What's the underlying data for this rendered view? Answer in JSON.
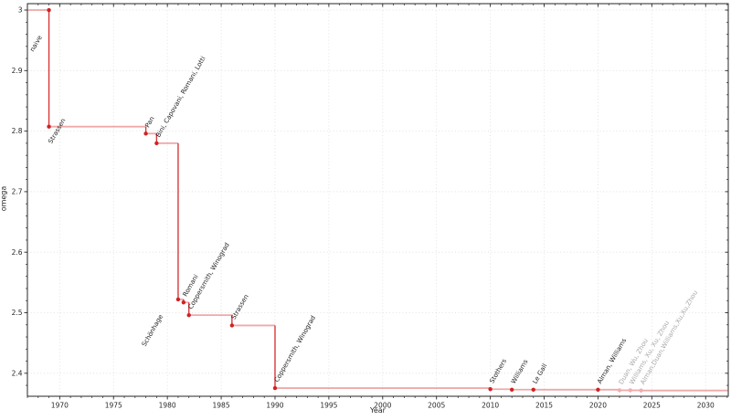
{
  "chart_data": {
    "type": "line",
    "subtype": "step-post",
    "title": "",
    "xlabel": "Year",
    "ylabel": "omega",
    "xlim": [
      1967.0,
      2032.1
    ],
    "ylim": [
      2.362,
      3.0106
    ],
    "grid": "dotted-at-major-ticks",
    "legend": "none",
    "x_ticks": [
      {
        "value": 1970,
        "label": "1970"
      },
      {
        "value": 1975,
        "label": "1975"
      },
      {
        "value": 1980,
        "label": "1980"
      },
      {
        "value": 1985,
        "label": "1985"
      },
      {
        "value": 1990,
        "label": "1990"
      },
      {
        "value": 1995,
        "label": "1995"
      },
      {
        "value": 2000,
        "label": "2000"
      },
      {
        "value": 2005,
        "label": "2005"
      },
      {
        "value": 2010,
        "label": "2010"
      },
      {
        "value": 2015,
        "label": "2015"
      },
      {
        "value": 2020,
        "label": "2020"
      },
      {
        "value": 2025,
        "label": "2025"
      },
      {
        "value": 2030,
        "label": "2030"
      }
    ],
    "x_minor_step": 1,
    "y_ticks": [
      {
        "value": 2.4,
        "label": "2.4"
      },
      {
        "value": 2.5,
        "label": "2.5"
      },
      {
        "value": 2.6,
        "label": "2.6"
      },
      {
        "value": 2.7,
        "label": "2.7"
      },
      {
        "value": 2.8,
        "label": "2.8"
      },
      {
        "value": 2.9,
        "label": "2.9"
      },
      {
        "value": 3.0,
        "label": "3"
      }
    ],
    "y_minor_step": 0.02,
    "colors": {
      "line": "#d62728",
      "marker": "#cf2324",
      "faded_marker": "#f3abad",
      "label": "#1f1f1f",
      "faded_label": "#a9a9a9",
      "axis": "#262626",
      "tick_label": "#262626",
      "grid": "#dcdcdc"
    },
    "points": [
      {
        "year": 1969,
        "omega": 3.0,
        "label": "naive",
        "label_offset": [
          -17,
          46
        ]
      },
      {
        "year": 1969,
        "omega": 2.8074,
        "label": "Strassen",
        "label_offset": [
          3,
          19
        ]
      },
      {
        "year": 1978,
        "omega": 2.796,
        "label": "Pan"
      },
      {
        "year": 1979,
        "omega": 2.78,
        "label": "Bini, Capovani, Romani, Lotti"
      },
      {
        "year": 1981,
        "omega": 2.522,
        "label": "Schönhage",
        "label_offset": [
          -36,
          52
        ]
      },
      {
        "year": 1981.5,
        "omega": 2.517,
        "label": "Romani"
      },
      {
        "year": 1982,
        "omega": 2.496,
        "label": "Coppersmith, Winograd"
      },
      {
        "year": 1986,
        "omega": 2.479,
        "label": "Strassen"
      },
      {
        "year": 1990,
        "omega": 2.3755,
        "label": "Coppersmith, Winograd"
      },
      {
        "year": 2010,
        "omega": 2.3737,
        "label": "Stothers"
      },
      {
        "year": 2012,
        "omega": 2.3729,
        "label": "Williams"
      },
      {
        "year": 2014,
        "omega": 2.3728639,
        "label": "Le Gall"
      },
      {
        "year": 2020,
        "omega": 2.3728596,
        "label": "Alman, Williams"
      },
      {
        "year": 2022,
        "omega": 2.37188,
        "label": "Duan, Wu, Zhou",
        "faded": true
      },
      {
        "year": 2023,
        "omega": 2.371866,
        "label": "Williams, Xu, Xu, Zhou",
        "faded": true
      },
      {
        "year": 2024,
        "omega": 2.371552,
        "label": "Alman,Duan,Williams,Xu,Xu,Zhou",
        "faded": true
      }
    ]
  }
}
